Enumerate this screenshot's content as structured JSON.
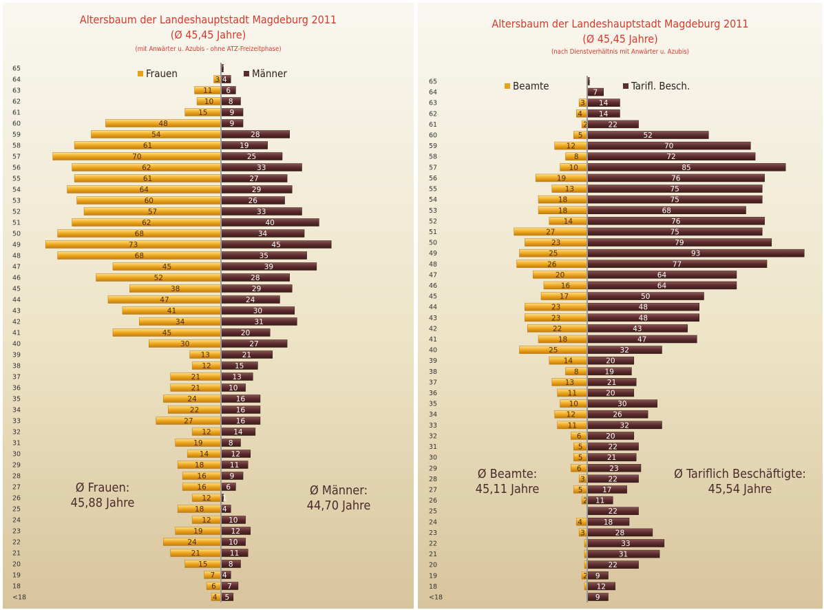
{
  "chart_data": [
    {
      "type": "bar",
      "title": "Altersbaum der Landeshauptstadt Magdeburg 2011",
      "subtitle": "(Ø 45,45 Jahre)",
      "note": "(mit Anwärter u. Azubis - ohne ATZ-Freizeitphase)",
      "categories": [
        "65",
        "64",
        "63",
        "62",
        "61",
        "60",
        "59",
        "58",
        "57",
        "56",
        "55",
        "54",
        "53",
        "52",
        "51",
        "50",
        "49",
        "48",
        "47",
        "46",
        "45",
        "44",
        "43",
        "42",
        "41",
        "40",
        "39",
        "38",
        "37",
        "36",
        "35",
        "34",
        "33",
        "32",
        "31",
        "30",
        "29",
        "28",
        "27",
        "26",
        "25",
        "24",
        "23",
        "22",
        "21",
        "20",
        "19",
        "18",
        "<18"
      ],
      "series": [
        {
          "name": "Frauen",
          "color": "#e8a21a",
          "values": [
            null,
            3,
            11,
            10,
            15,
            48,
            54,
            61,
            70,
            62,
            61,
            64,
            60,
            57,
            62,
            68,
            73,
            68,
            45,
            52,
            38,
            47,
            41,
            34,
            45,
            30,
            13,
            12,
            21,
            21,
            24,
            22,
            27,
            12,
            19,
            14,
            18,
            16,
            16,
            12,
            18,
            12,
            19,
            24,
            21,
            15,
            7,
            6,
            4
          ]
        },
        {
          "name": "Männer",
          "color": "#5c2c2c",
          "values": [
            1,
            4,
            6,
            8,
            9,
            9,
            28,
            19,
            25,
            33,
            27,
            29,
            26,
            33,
            40,
            34,
            45,
            35,
            39,
            28,
            29,
            24,
            30,
            31,
            20,
            27,
            21,
            15,
            13,
            10,
            16,
            16,
            16,
            14,
            8,
            12,
            11,
            9,
            6,
            1,
            4,
            10,
            12,
            10,
            11,
            8,
            4,
            7,
            5
          ]
        }
      ],
      "averages": [
        {
          "label": "Ø Frauen:",
          "value": "45,88 Jahre"
        },
        {
          "label": "Ø Männer:",
          "value": "44,70  Jahre"
        }
      ],
      "legend_position": "top"
    },
    {
      "type": "bar",
      "title": "Altersbaum der Landeshauptstadt Magdeburg 2011",
      "subtitle": "(Ø 45,45 Jahre)",
      "note": "(nach Dienstverhältnis mit Anwärter u. Azubis)",
      "categories": [
        "65",
        "64",
        "63",
        "62",
        "61",
        "60",
        "59",
        "58",
        "57",
        "56",
        "55",
        "54",
        "53",
        "52",
        "51",
        "50",
        "49",
        "48",
        "47",
        "46",
        "45",
        "44",
        "43",
        "42",
        "41",
        "40",
        "39",
        "38",
        "37",
        "36",
        "35",
        "34",
        "33",
        "32",
        "31",
        "30",
        "29",
        "28",
        "27",
        "26",
        "25",
        "24",
        "23",
        "22",
        "21",
        "20",
        "19",
        "18",
        "<18"
      ],
      "series": [
        {
          "name": "Beamte",
          "color": "#e8a21a",
          "values": [
            null,
            null,
            3,
            4,
            2,
            5,
            12,
            8,
            10,
            19,
            13,
            18,
            18,
            14,
            27,
            23,
            25,
            26,
            20,
            16,
            17,
            23,
            23,
            22,
            18,
            25,
            14,
            8,
            13,
            11,
            10,
            12,
            11,
            6,
            5,
            5,
            6,
            3,
            5,
            2,
            null,
            4,
            3,
            1,
            1,
            1,
            2,
            1,
            null
          ]
        },
        {
          "name": "Tarifl. Besch.",
          "color": "#5c2c2c",
          "values": [
            1,
            7,
            14,
            14,
            22,
            52,
            70,
            72,
            85,
            76,
            75,
            75,
            68,
            76,
            75,
            79,
            93,
            77,
            64,
            64,
            50,
            48,
            48,
            43,
            47,
            32,
            20,
            19,
            21,
            20,
            30,
            26,
            32,
            20,
            22,
            21,
            23,
            22,
            17,
            11,
            22,
            18,
            28,
            33,
            31,
            22,
            9,
            12,
            9
          ]
        }
      ],
      "averages": [
        {
          "label": "Ø Beamte:",
          "value": "45,11 Jahre"
        },
        {
          "label": "Ø Tariflich Beschäftigte:",
          "value": "45,54 Jahre"
        }
      ],
      "legend_position": "top"
    }
  ]
}
